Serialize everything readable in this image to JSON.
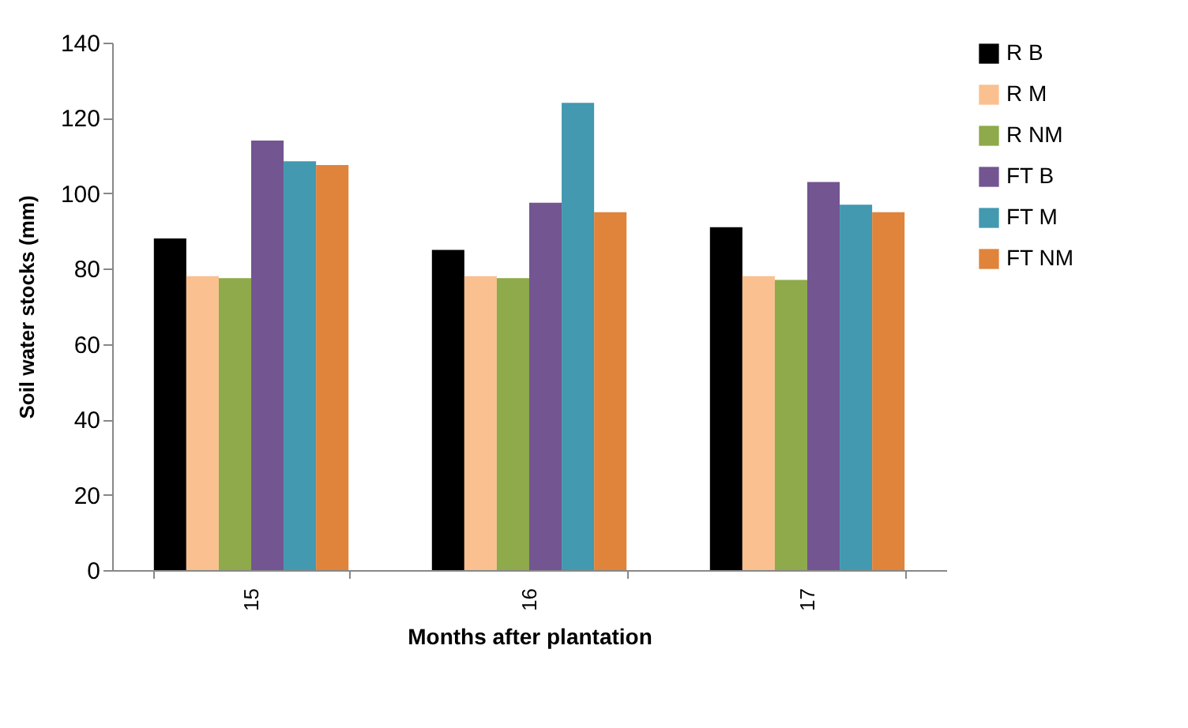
{
  "chart_data": {
    "type": "bar",
    "xlabel": "Months after plantation",
    "ylabel": "Soil water stocks (mm)",
    "categories": [
      "15",
      "16",
      "17"
    ],
    "series": [
      {
        "name": "R B",
        "color": "#000000",
        "values": [
          88,
          85,
          91
        ]
      },
      {
        "name": "R M",
        "color": "#fac090",
        "values": [
          78,
          78,
          78
        ]
      },
      {
        "name": "R NM",
        "color": "#8eaa4a",
        "values": [
          77.5,
          77.5,
          77
        ]
      },
      {
        "name": "FT B",
        "color": "#735591",
        "values": [
          114,
          97.5,
          103
        ]
      },
      {
        "name": "FT M",
        "color": "#4299b0",
        "values": [
          108.5,
          124,
          97
        ]
      },
      {
        "name": "FT NM",
        "color": "#e0843c",
        "values": [
          107.5,
          95,
          95
        ]
      }
    ],
    "ylim": [
      0,
      140
    ],
    "yticks": [
      0,
      20,
      40,
      60,
      80,
      100,
      120,
      140
    ],
    "grid": false,
    "legend": "right"
  }
}
